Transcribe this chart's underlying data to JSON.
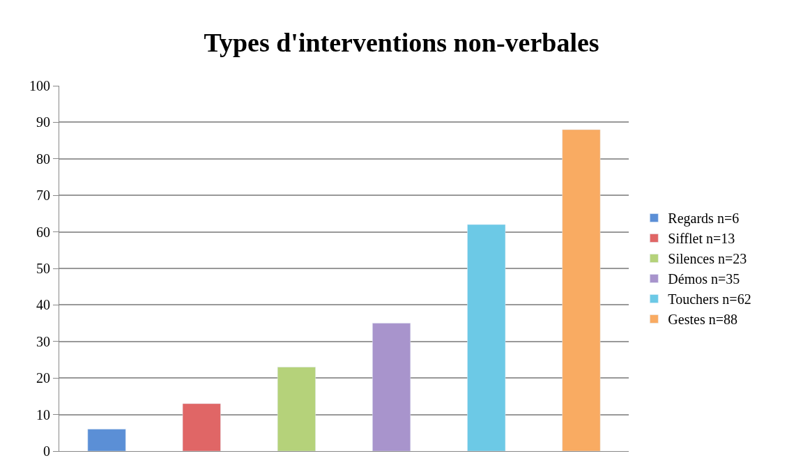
{
  "chart_data": {
    "type": "bar",
    "title": "Types d'interventions non-verbales",
    "categories": [
      null,
      null,
      null,
      null,
      null,
      null
    ],
    "series": [
      {
        "name": "Regards n=6",
        "color": "#5b8fd6",
        "values": [
          6,
          null,
          null,
          null,
          null,
          null
        ]
      },
      {
        "name": "Sifflet n=13",
        "color": "#e06666",
        "values": [
          null,
          13,
          null,
          null,
          null,
          null
        ]
      },
      {
        "name": "Silences n=23",
        "color": "#b5d27a",
        "values": [
          null,
          null,
          23,
          null,
          null,
          null
        ]
      },
      {
        "name": "Démos n=35",
        "color": "#a894cc",
        "values": [
          null,
          null,
          null,
          35,
          null,
          null
        ]
      },
      {
        "name": "Touchers n=62",
        "color": "#6cc9e6",
        "values": [
          null,
          null,
          null,
          null,
          62,
          null
        ]
      },
      {
        "name": "Gestes n=88",
        "color": "#f9ab62",
        "values": [
          null,
          null,
          null,
          null,
          null,
          88
        ]
      }
    ],
    "ylim": [
      0,
      100
    ],
    "yticks": [
      0,
      10,
      20,
      30,
      40,
      50,
      60,
      70,
      80,
      90,
      100
    ],
    "grid": "y",
    "legend": "right"
  }
}
